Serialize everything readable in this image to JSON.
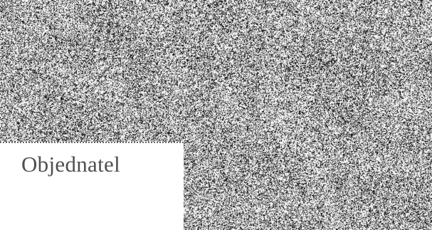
{
  "label": {
    "text": "Objednatel"
  },
  "colors": {
    "background": "#ffffff",
    "noise_dark": "#1a1a1a",
    "text": "#4f4f4f",
    "divider": "#6a6a6a"
  }
}
